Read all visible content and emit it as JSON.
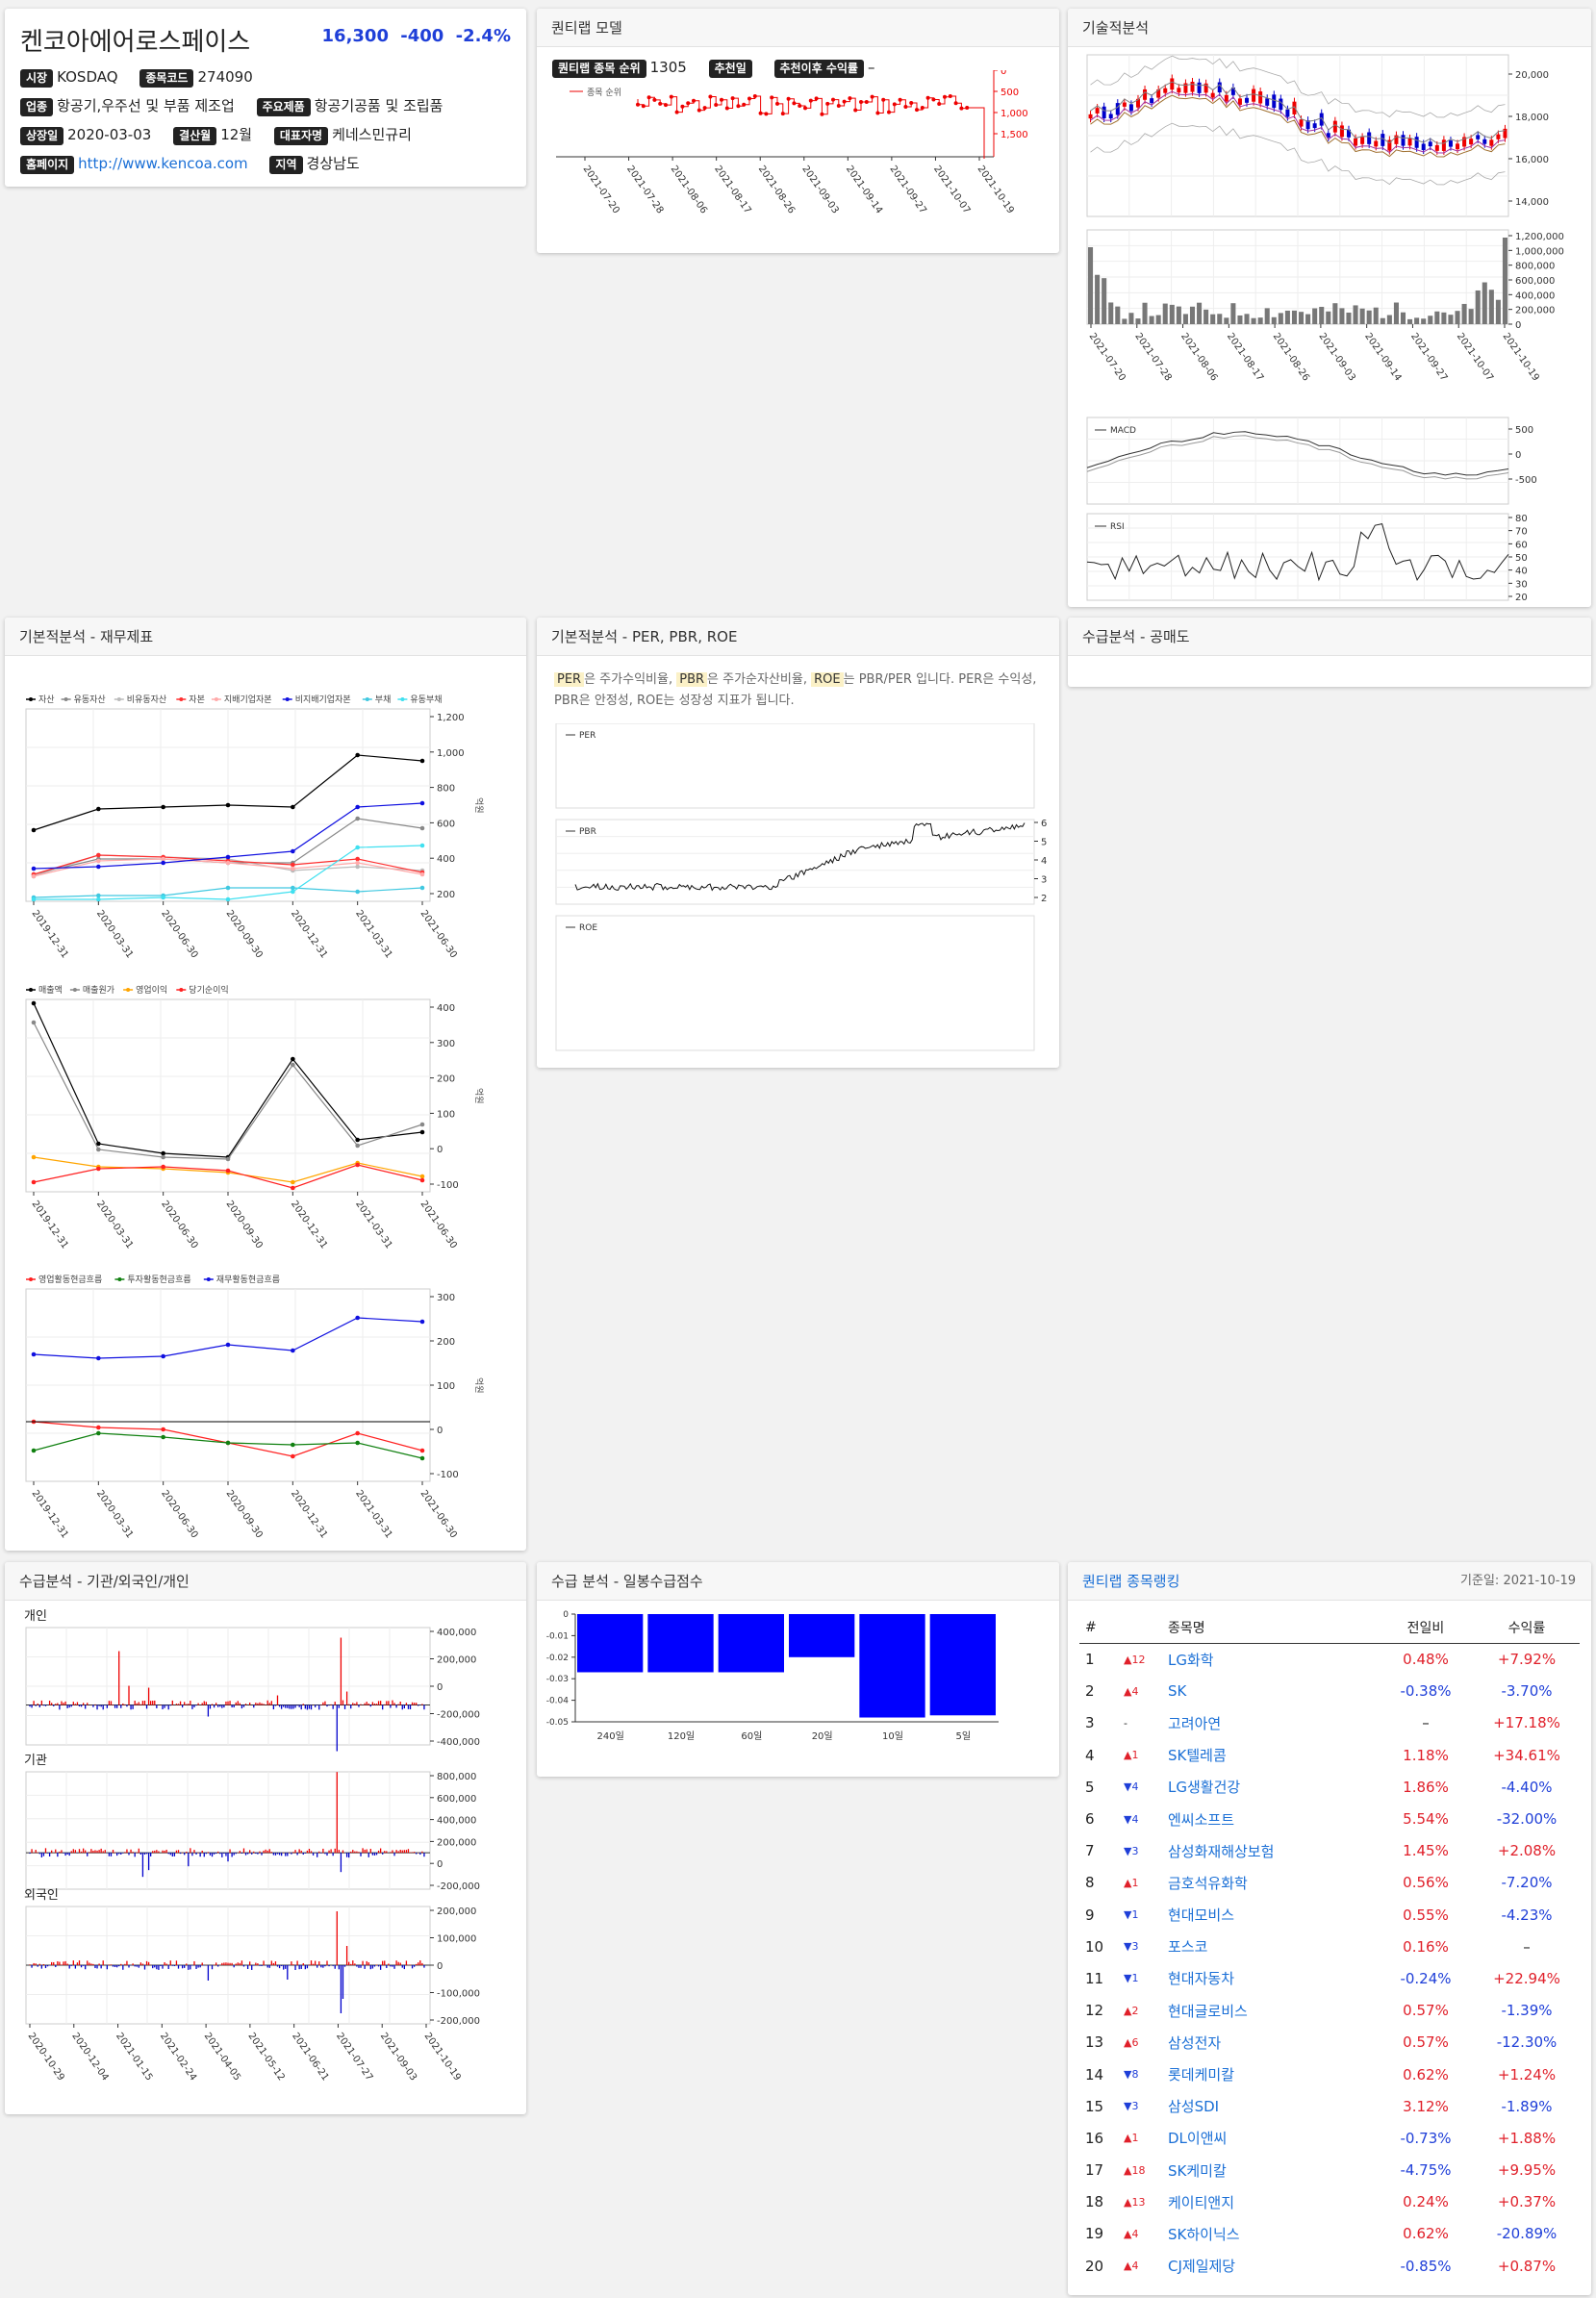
{
  "company": {
    "name": "켄코아에어로스페이스",
    "price": "16,300",
    "change": "-400",
    "change_pct": "-2.4%",
    "market_label": "시장",
    "market": "KOSDAQ",
    "code_label": "종목코드",
    "code": "274090",
    "industry_label": "업종",
    "industry": "항공기,우주선 및 부품 제조업",
    "product_label": "주요제품",
    "product": "항공기공품 및 조립품",
    "listing_label": "상장일",
    "listing": "2020-03-03",
    "settle_label": "결산월",
    "settle": "12월",
    "ceo_label": "대표자명",
    "ceo": "케네스민규리",
    "homepage_label": "홈페이지",
    "homepage": "http://www.kencoa.com",
    "region_label": "지역",
    "region": "경상남도"
  },
  "quant_model": {
    "title": "퀀티랩 모델",
    "rank_label": "퀀티랩 종목 순위",
    "rank": "1305",
    "rec_date_label": "추천일",
    "rec_return_label": "추천이후 수익률",
    "rec_return": "–",
    "legend": "종목 순위",
    "y_ticks": [
      "0",
      "500",
      "1,000",
      "1,500"
    ],
    "x_ticks": [
      "2021-07-20",
      "2021-07-28",
      "2021-08-06",
      "2021-08-17",
      "2021-08-26",
      "2021-09-03",
      "2021-09-14",
      "2021-09-27",
      "2021-10-07",
      "2021-10-19"
    ]
  },
  "technical": {
    "title": "기술적분석",
    "price_ticks": [
      "20,000",
      "18,000",
      "16,000",
      "14,000"
    ],
    "volume_ticks": [
      "1,200,000",
      "1,000,000",
      "800,000",
      "600,000",
      "400,000",
      "200,000",
      "0"
    ],
    "x_ticks": [
      "2021-07-20",
      "2021-07-28",
      "2021-08-06",
      "2021-08-17",
      "2021-08-26",
      "2021-09-03",
      "2021-09-14",
      "2021-09-27",
      "2021-10-07",
      "2021-10-19"
    ],
    "macd_label": "MACD",
    "macd_ticks": [
      "500",
      "0",
      "-500"
    ],
    "rsi_label": "RSI",
    "rsi_ticks": [
      "80",
      "70",
      "60",
      "50",
      "40",
      "30",
      "20"
    ]
  },
  "fundamental": {
    "title": "기본적분석 - 재무제표",
    "x_ticks": [
      "2019-12-31",
      "2020-03-31",
      "2020-06-30",
      "2020-09-30",
      "2020-12-31",
      "2021-03-31",
      "2021-06-30"
    ],
    "unit": "억원",
    "bs_legend": [
      {
        "name": "자산",
        "color": "#000000"
      },
      {
        "name": "유동자산",
        "color": "#888888"
      },
      {
        "name": "비유동자산",
        "color": "#bbbbbb"
      },
      {
        "name": "자본",
        "color": "#ff3030"
      },
      {
        "name": "지배기업자본",
        "color": "#ffaaaa"
      },
      {
        "name": "비지배기업자본",
        "color": "#1010e0"
      },
      {
        "name": "부채",
        "color": "#40c8e0"
      },
      {
        "name": "유동부채",
        "color": "#40e0f0"
      }
    ],
    "bs_ticks": [
      "1,200",
      "1,000",
      "800",
      "600",
      "400",
      "200"
    ],
    "is_legend": [
      {
        "name": "매출액",
        "color": "#000000"
      },
      {
        "name": "매출원가",
        "color": "#888888"
      },
      {
        "name": "영업이익",
        "color": "#ffa500"
      },
      {
        "name": "당기순이익",
        "color": "#ff2020"
      }
    ],
    "is_ticks": [
      "400",
      "300",
      "200",
      "100",
      "0",
      "-100"
    ],
    "cf_legend": [
      {
        "name": "영업활동현금흐름",
        "color": "#ff2020"
      },
      {
        "name": "투자활동현금흐름",
        "color": "#108010"
      },
      {
        "name": "재무활동현금흐름",
        "color": "#1010e0"
      }
    ],
    "cf_ticks": [
      "300",
      "200",
      "100",
      "0",
      "-100"
    ]
  },
  "ratio": {
    "title": "기본적분석 - PER, PBR, ROE",
    "per": "PER",
    "per_desc": "은 주가수익비율,",
    "pbr": "PBR",
    "pbr_desc": "은 주가순자산비율,",
    "roe": "ROE",
    "roe_desc": "는 PBR/PER 입니다. PER은 수익성, PBR은 안정성, ROE는 성장성 지표가 됩니다.",
    "pbr_ticks": [
      "6",
      "5",
      "4",
      "3",
      "2"
    ]
  },
  "short_sell": {
    "title": "수급분석 - 공매도"
  },
  "supply": {
    "title": "수급분석 - 기관/외국인/개인",
    "individual": "개인",
    "institution": "기관",
    "foreign": "외국인",
    "ind_ticks": [
      "400,000",
      "200,000",
      "0",
      "-200,000",
      "-400,000"
    ],
    "inst_ticks": [
      "800,000",
      "600,000",
      "400,000",
      "200,000",
      "0",
      "-200,000"
    ],
    "for_ticks": [
      "200,000",
      "100,000",
      "0",
      "-100,000",
      "-200,000"
    ],
    "x_ticks": [
      "2020-10-29",
      "2020-12-04",
      "2021-01-15",
      "2021-02-24",
      "2021-04-05",
      "2021-05-12",
      "2021-06-21",
      "2021-07-27",
      "2021-09-03",
      "2021-10-19"
    ]
  },
  "daily_score": {
    "title": "수급 분석 - 일봉수급점수",
    "y_ticks": [
      "0",
      "-0.01",
      "-0.02",
      "-0.03",
      "-0.04",
      "-0.05"
    ]
  },
  "daily_score_chart": {
    "type": "bar",
    "categories": [
      "240일",
      "120일",
      "60일",
      "20일",
      "10일",
      "5일"
    ],
    "values": [
      -0.027,
      -0.027,
      -0.027,
      -0.02,
      -0.048,
      -0.047
    ],
    "ylim": [
      -0.05,
      0
    ],
    "color": "#0000ff"
  },
  "ranking": {
    "title": "퀀티랩 종목랭킹",
    "base_date": "기준일: 2021-10-19",
    "headers": [
      "#",
      "종목명",
      "전일비",
      "수익률"
    ],
    "rows": [
      {
        "rank": "1",
        "move": "▲12",
        "dir": "up",
        "name": "LG화학",
        "change": "0.48%",
        "chg_dir": "up",
        "ret": "+7.92%",
        "ret_dir": "up"
      },
      {
        "rank": "2",
        "move": "▲4",
        "dir": "up",
        "name": "SK",
        "change": "-0.38%",
        "chg_dir": "down",
        "ret": "-3.70%",
        "ret_dir": "down"
      },
      {
        "rank": "3",
        "move": "-",
        "dir": "none",
        "name": "고려아연",
        "change": "–",
        "chg_dir": "none",
        "ret": "+17.18%",
        "ret_dir": "up"
      },
      {
        "rank": "4",
        "move": "▲1",
        "dir": "up",
        "name": "SK텔레콤",
        "change": "1.18%",
        "chg_dir": "up",
        "ret": "+34.61%",
        "ret_dir": "up"
      },
      {
        "rank": "5",
        "move": "▼4",
        "dir": "down",
        "name": "LG생활건강",
        "change": "1.86%",
        "chg_dir": "up",
        "ret": "-4.40%",
        "ret_dir": "down"
      },
      {
        "rank": "6",
        "move": "▼4",
        "dir": "down",
        "name": "엔씨소프트",
        "change": "5.54%",
        "chg_dir": "up",
        "ret": "-32.00%",
        "ret_dir": "down"
      },
      {
        "rank": "7",
        "move": "▼3",
        "dir": "down",
        "name": "삼성화재해상보험",
        "change": "1.45%",
        "chg_dir": "up",
        "ret": "+2.08%",
        "ret_dir": "up"
      },
      {
        "rank": "8",
        "move": "▲1",
        "dir": "up",
        "name": "금호석유화학",
        "change": "0.56%",
        "chg_dir": "up",
        "ret": "-7.20%",
        "ret_dir": "down"
      },
      {
        "rank": "9",
        "move": "▼1",
        "dir": "down",
        "name": "현대모비스",
        "change": "0.55%",
        "chg_dir": "up",
        "ret": "-4.23%",
        "ret_dir": "down"
      },
      {
        "rank": "10",
        "move": "▼3",
        "dir": "down",
        "name": "포스코",
        "change": "0.16%",
        "chg_dir": "up",
        "ret": "–",
        "ret_dir": "none"
      },
      {
        "rank": "11",
        "move": "▼1",
        "dir": "down",
        "name": "현대자동차",
        "change": "-0.24%",
        "chg_dir": "down",
        "ret": "+22.94%",
        "ret_dir": "up"
      },
      {
        "rank": "12",
        "move": "▲2",
        "dir": "up",
        "name": "현대글로비스",
        "change": "0.57%",
        "chg_dir": "up",
        "ret": "-1.39%",
        "ret_dir": "down"
      },
      {
        "rank": "13",
        "move": "▲6",
        "dir": "up",
        "name": "삼성전자",
        "change": "0.57%",
        "chg_dir": "up",
        "ret": "-12.30%",
        "ret_dir": "down"
      },
      {
        "rank": "14",
        "move": "▼8",
        "dir": "down",
        "name": "롯데케미칼",
        "change": "0.62%",
        "chg_dir": "up",
        "ret": "+1.24%",
        "ret_dir": "up"
      },
      {
        "rank": "15",
        "move": "▼3",
        "dir": "down",
        "name": "삼성SDI",
        "change": "3.12%",
        "chg_dir": "up",
        "ret": "-1.89%",
        "ret_dir": "down"
      },
      {
        "rank": "16",
        "move": "▲1",
        "dir": "up",
        "name": "DL이앤씨",
        "change": "-0.73%",
        "chg_dir": "down",
        "ret": "+1.88%",
        "ret_dir": "up"
      },
      {
        "rank": "17",
        "move": "▲18",
        "dir": "up",
        "name": "SK케미칼",
        "change": "-4.75%",
        "chg_dir": "down",
        "ret": "+9.95%",
        "ret_dir": "up"
      },
      {
        "rank": "18",
        "move": "▲13",
        "dir": "up",
        "name": "케이티앤지",
        "change": "0.24%",
        "chg_dir": "up",
        "ret": "+0.37%",
        "ret_dir": "up"
      },
      {
        "rank": "19",
        "move": "▲4",
        "dir": "up",
        "name": "SK하이닉스",
        "change": "0.62%",
        "chg_dir": "up",
        "ret": "-20.89%",
        "ret_dir": "down"
      },
      {
        "rank": "20",
        "move": "▲4",
        "dir": "up",
        "name": "CJ제일제당",
        "change": "-0.85%",
        "chg_dir": "down",
        "ret": "+0.87%",
        "ret_dir": "up"
      }
    ]
  }
}
